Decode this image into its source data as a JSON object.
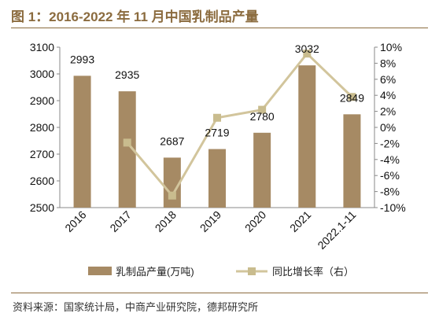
{
  "title": "图 1：2016-2022 年 11 月中国乳制品产量",
  "source": "资料来源：国家统计局，中商产业研究院，德邦研究所",
  "colors": {
    "bar": "#a68a64",
    "line": "#d2c59c",
    "marker": "#c9bc8e",
    "title": "#8b6b3e"
  },
  "chart_data": {
    "type": "bar",
    "categories": [
      "2016",
      "2017",
      "2018",
      "2019",
      "2020",
      "2021",
      "2022.1-11"
    ],
    "series": [
      {
        "name": "乳制品产量(万吨)",
        "type": "bar",
        "axis": "left",
        "values": [
          2993,
          2935,
          2687,
          2719,
          2780,
          3032,
          2849
        ],
        "labels": [
          "2993",
          "2935",
          "2687",
          "2719",
          "2780",
          "3032",
          "2849"
        ]
      },
      {
        "name": "同比增长率（右）",
        "type": "line",
        "axis": "right",
        "values": [
          null,
          -1.9,
          -8.5,
          1.2,
          2.2,
          9.2,
          3.8
        ]
      }
    ],
    "y_left": {
      "min": 2500,
      "max": 3100,
      "ticks": [
        "2500",
        "2600",
        "2700",
        "2800",
        "2900",
        "3000",
        "3100"
      ]
    },
    "y_right": {
      "min": -10,
      "max": 10,
      "ticks": [
        "-10%",
        "-8%",
        "-6%",
        "-4%",
        "-2%",
        "0%",
        "2%",
        "4%",
        "6%",
        "8%",
        "10%"
      ]
    },
    "legend_position": "bottom",
    "grid": false
  }
}
